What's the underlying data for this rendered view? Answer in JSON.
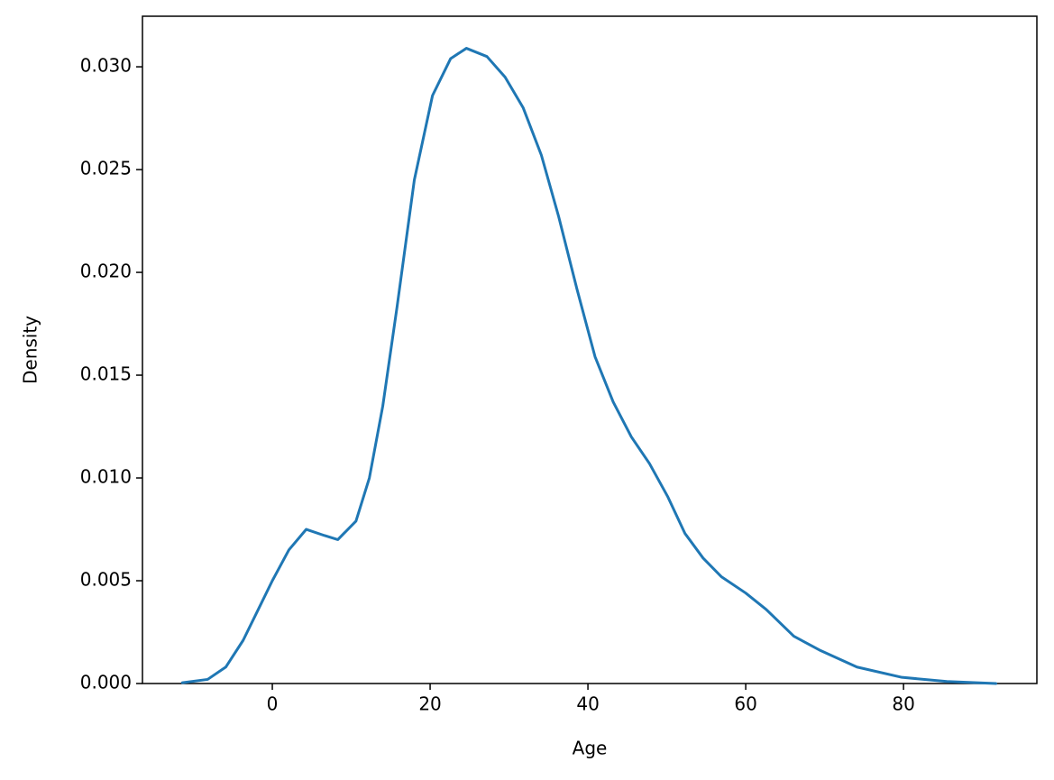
{
  "chart_data": {
    "type": "line",
    "x_label": "Age",
    "y_label": "Density",
    "x": [
      -11.4,
      -8.2,
      -5.9,
      -3.7,
      -1.4,
      0,
      2.1,
      4.3,
      6.6,
      8.3,
      10.6,
      12.3,
      14,
      15.8,
      18,
      20.3,
      22.6,
      24.6,
      27.2,
      29.5,
      31.8,
      34.1,
      36.3,
      38.6,
      40.9,
      43.2,
      45.5,
      47.8,
      50.1,
      52.3,
      54.6,
      56.9,
      60,
      62.6,
      66.1,
      69.5,
      74.1,
      79.8,
      85.5,
      91.7
    ],
    "series": [
      {
        "color": "#1f77b4",
        "values": [
          4e-05,
          0.0002,
          0.0008,
          0.0021,
          0.0039,
          0.005,
          0.0065,
          0.0075,
          0.0072,
          0.007,
          0.0079,
          0.01,
          0.0135,
          0.0183,
          0.0245,
          0.0286,
          0.0304,
          0.0309,
          0.0305,
          0.0295,
          0.028,
          0.0257,
          0.0227,
          0.0192,
          0.0159,
          0.0137,
          0.012,
          0.0107,
          0.0091,
          0.0073,
          0.0061,
          0.0052,
          0.0044,
          0.0036,
          0.0023,
          0.0016,
          0.0008,
          0.0003,
          0.0001,
          0
        ]
      }
    ],
    "xlim": [
      -16.46,
      96.9
    ],
    "xticks": [
      0,
      20,
      40,
      60,
      80
    ],
    "ylim": [
      0,
      0.03246
    ],
    "yticks": [
      {
        "value": 0,
        "label": "0.000"
      },
      {
        "value": 0.005,
        "label": "0.005"
      },
      {
        "value": 0.01,
        "label": "0.010"
      },
      {
        "value": 0.015,
        "label": "0.015"
      },
      {
        "value": 0.02,
        "label": "0.020"
      },
      {
        "value": 0.025,
        "label": "0.025"
      },
      {
        "value": 0.03,
        "label": "0.030"
      }
    ]
  }
}
